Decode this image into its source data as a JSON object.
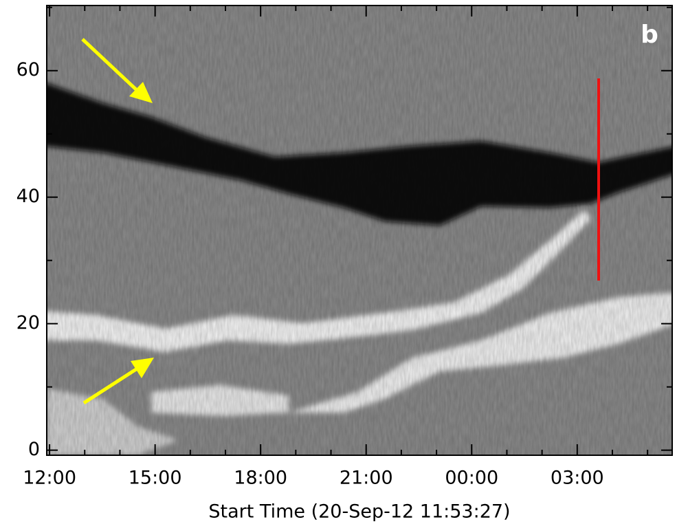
{
  "chart_data": {
    "type": "image",
    "panel_label": "b",
    "xlabel": "Start Time (20-Sep-12 11:53:27)",
    "xlim": [
      -0.08,
      17.7
    ],
    "xticks": [
      {
        "value": 0,
        "label": "12:00"
      },
      {
        "value": 3,
        "label": "15:00"
      },
      {
        "value": 6,
        "label": "18:00"
      },
      {
        "value": 9,
        "label": "21:00"
      },
      {
        "value": 12,
        "label": "00:00"
      },
      {
        "value": 15,
        "label": "03:00"
      }
    ],
    "xminorticks": [
      1,
      2,
      4,
      5,
      7,
      8,
      10,
      11,
      13,
      14,
      16,
      17
    ],
    "ylim": [
      -0.8,
      70.3
    ],
    "yticks": [
      0,
      20,
      40,
      60
    ],
    "yminorticks": [
      10,
      30,
      50,
      70
    ]
  }
}
